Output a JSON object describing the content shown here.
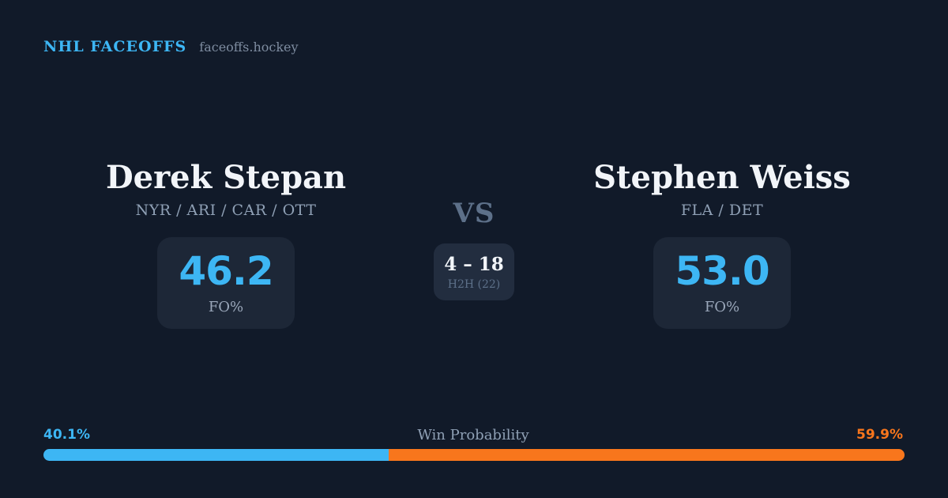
{
  "header": {
    "brand": "NHL FACEOFFS",
    "domain": "faceoffs.hockey"
  },
  "matchup": {
    "vs_label": "VS",
    "h2h": {
      "score": "4 – 18",
      "label": "H2H (22)"
    },
    "players": [
      {
        "name": "Derek Stepan",
        "teams": "NYR / ARI / CAR / OTT",
        "fo_pct": "46.2",
        "fo_label": "FO%"
      },
      {
        "name": "Stephen Weiss",
        "teams": "FLA / DET",
        "fo_pct": "53.0",
        "fo_label": "FO%"
      }
    ]
  },
  "win_probability": {
    "label": "Win Probability",
    "left_label": "40.1%",
    "right_label": "59.9%",
    "left_width": "40.1%",
    "right_width": "59.9%"
  },
  "chart_data": {
    "type": "bar",
    "orientation": "horizontal_stacked",
    "title": "Win Probability",
    "categories": [
      "Derek Stepan",
      "Stephen Weiss"
    ],
    "values": [
      40.1,
      59.9
    ],
    "unit": "%",
    "colors": [
      "#3db6f4",
      "#f8761c"
    ],
    "xlim": [
      0,
      100
    ],
    "legend": "none",
    "grid": false,
    "related_stats": {
      "faceoff_pct": {
        "Derek Stepan": 46.2,
        "Stephen Weiss": 53.0
      },
      "head_to_head": {
        "score": "4 – 18",
        "sample_size": 22
      }
    }
  },
  "colors": {
    "background": "#111a29",
    "card": "#1d2737",
    "h2h_card": "#222d3f",
    "accent_blue": "#3db6f4",
    "accent_orange": "#f8761c",
    "text_primary": "#f2f5f9",
    "text_muted": "#8fa0b5",
    "text_label": "#9aa7ba",
    "text_dim": "#5d7089",
    "text_dim2": "#7e8ca0"
  }
}
